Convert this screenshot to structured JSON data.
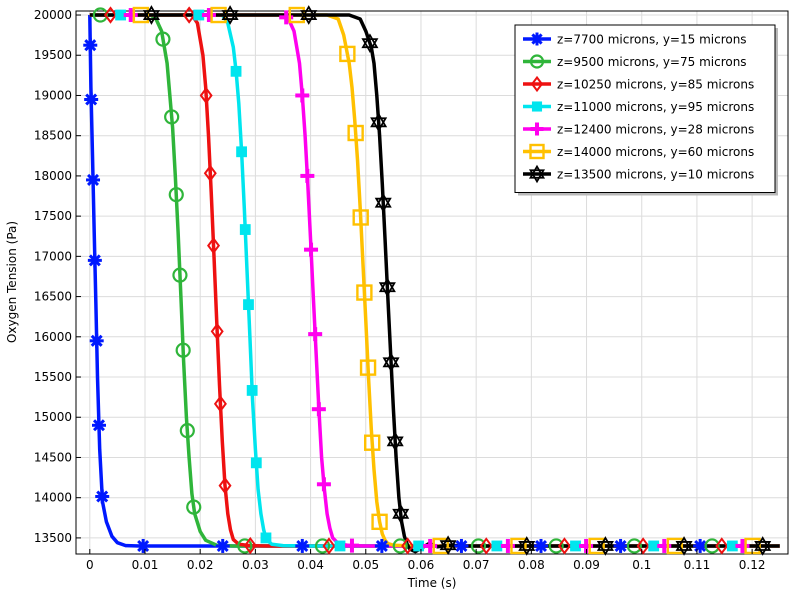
{
  "chart_data": {
    "type": "line",
    "xlabel": "Time (s)",
    "ylabel": "Oxygen Tension  (Pa)",
    "xlim": [
      -0.0025,
      0.1265
    ],
    "ylim": [
      13300,
      20050
    ],
    "grid": true,
    "legend_position": "top-right",
    "x_ticks": [
      0,
      0.01,
      0.02,
      0.03,
      0.04,
      0.05,
      0.06,
      0.07,
      0.08,
      0.09,
      0.1,
      0.11,
      0.12
    ],
    "x_tick_labels": [
      "0",
      "0.01",
      "0.02",
      "0.03",
      "0.04",
      "0.05",
      "0.06",
      "0.07",
      "0.08",
      "0.09",
      "0.1",
      "0.11",
      "0.12"
    ],
    "y_ticks": [
      13500,
      14000,
      14500,
      15000,
      15500,
      16000,
      16500,
      17000,
      17500,
      18000,
      18500,
      19000,
      19500,
      20000
    ],
    "y_tick_labels": [
      "13500",
      "14000",
      "14500",
      "15000",
      "15500",
      "16000",
      "16500",
      "17000",
      "17500",
      "18000",
      "18500",
      "19000",
      "19500",
      "20000"
    ],
    "series": [
      {
        "name": "z=7700 microns,  y=15 microns",
        "color": "#0019ff",
        "marker": "asterisk",
        "x": [
          0,
          0.0002,
          0.0005,
          0.0008,
          0.0011,
          0.0014,
          0.0018,
          0.0023,
          0.003,
          0.004,
          0.005,
          0.0065,
          0.009,
          0.013,
          0.02,
          0.03,
          0.04,
          0.06,
          0.08,
          0.1,
          0.125
        ],
        "y": [
          20000,
          19100,
          18200,
          17300,
          16400,
          15500,
          14600,
          13950,
          13700,
          13520,
          13440,
          13405,
          13400,
          13400,
          13400,
          13400,
          13400,
          13400,
          13400,
          13400,
          13400
        ]
      },
      {
        "name": "z=9500 microns,  y=75 microns",
        "color": "#2fb53a",
        "marker": "circle",
        "x": [
          0,
          0.011,
          0.012,
          0.013,
          0.014,
          0.015,
          0.0155,
          0.016,
          0.0165,
          0.017,
          0.0175,
          0.018,
          0.0185,
          0.019,
          0.02,
          0.021,
          0.023,
          0.026,
          0.035,
          0.05,
          0.125
        ],
        "y": [
          20000,
          20000,
          19950,
          19800,
          19400,
          18600,
          18000,
          17300,
          16500,
          15700,
          15000,
          14500,
          14050,
          13800,
          13580,
          13470,
          13410,
          13400,
          13400,
          13400,
          13400
        ]
      },
      {
        "name": "z=10250 microns, y=85 microns",
        "color": "#ee1111",
        "marker": "diamond",
        "x": [
          0,
          0.0185,
          0.0195,
          0.0205,
          0.021,
          0.0215,
          0.022,
          0.0225,
          0.023,
          0.0235,
          0.024,
          0.0245,
          0.025,
          0.0255,
          0.026,
          0.027,
          0.029,
          0.032,
          0.04,
          0.06,
          0.125
        ],
        "y": [
          20000,
          20000,
          19900,
          19500,
          19100,
          18500,
          17800,
          17000,
          16200,
          15400,
          14700,
          14150,
          13800,
          13600,
          13480,
          13420,
          13405,
          13400,
          13400,
          13400,
          13400
        ]
      },
      {
        "name": "z=11000 microns, y=95 microns",
        "color": "#00e5ee",
        "marker": "square",
        "x": [
          0,
          0.024,
          0.025,
          0.026,
          0.0265,
          0.027,
          0.0275,
          0.028,
          0.0285,
          0.029,
          0.0295,
          0.03,
          0.0305,
          0.031,
          0.0315,
          0.032,
          0.033,
          0.035,
          0.04,
          0.06,
          0.125
        ],
        "y": [
          20000,
          20000,
          19900,
          19600,
          19300,
          18900,
          18300,
          17600,
          16800,
          16000,
          15200,
          14600,
          14100,
          13800,
          13600,
          13480,
          13420,
          13405,
          13400,
          13400,
          13400
        ]
      },
      {
        "name": "z=12400 microns, y=28 microns",
        "color": "#ff00ee",
        "marker": "plus",
        "x": [
          0,
          0.035,
          0.036,
          0.037,
          0.038,
          0.0385,
          0.039,
          0.0395,
          0.04,
          0.0405,
          0.041,
          0.0415,
          0.042,
          0.0425,
          0.043,
          0.0435,
          0.044,
          0.045,
          0.047,
          0.05,
          0.06,
          0.125
        ],
        "y": [
          20000,
          20000,
          19950,
          19800,
          19400,
          19000,
          18500,
          17900,
          17200,
          16500,
          15800,
          15100,
          14500,
          14100,
          13800,
          13620,
          13500,
          13430,
          13405,
          13400,
          13400,
          13400
        ]
      },
      {
        "name": "z=14000 microns, y=60 microns",
        "color": "#ffc000",
        "marker": "square-open",
        "x": [
          0,
          0.043,
          0.045,
          0.046,
          0.047,
          0.0475,
          0.048,
          0.0485,
          0.049,
          0.0495,
          0.05,
          0.0505,
          0.051,
          0.0515,
          0.052,
          0.0525,
          0.053,
          0.0535,
          0.054,
          0.055,
          0.057,
          0.06,
          0.125
        ],
        "y": [
          20000,
          20000,
          19950,
          19750,
          19400,
          19100,
          18700,
          18200,
          17600,
          16900,
          16200,
          15500,
          14850,
          14350,
          13950,
          13700,
          13550,
          13470,
          13430,
          13410,
          13405,
          13400,
          13400
        ]
      },
      {
        "name": "z=13500 microns, y=10 microns",
        "color": "#000000",
        "marker": "hexagram",
        "x": [
          0,
          0.047,
          0.049,
          0.05,
          0.051,
          0.0515,
          0.052,
          0.0525,
          0.053,
          0.0535,
          0.054,
          0.0545,
          0.055,
          0.0555,
          0.056,
          0.0565,
          0.057,
          0.0575,
          0.058,
          0.059,
          0.06,
          0.0615,
          0.063,
          0.065,
          0.068,
          0.125
        ],
        "y": [
          20000,
          20000,
          19950,
          19800,
          19600,
          19400,
          19000,
          18500,
          17900,
          17200,
          16500,
          15800,
          15100,
          14500,
          14000,
          13700,
          13520,
          13420,
          13360,
          13330,
          13370,
          13430,
          13390,
          13410,
          13400,
          13400
        ]
      }
    ]
  }
}
